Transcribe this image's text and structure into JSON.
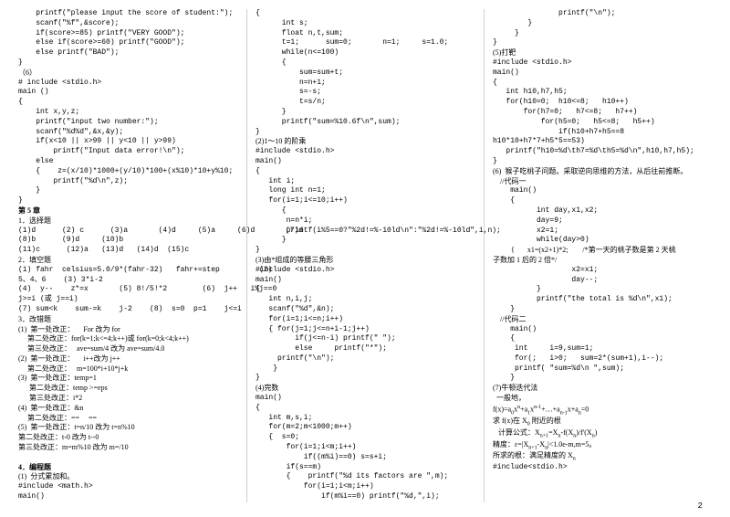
{
  "col1": [
    "    printf(\"please input the score of student:\");",
    "    scanf(\"%f\",&score);",
    "    if(score>=85) printf(\"VERY GOOD\");",
    "    else if(score>=60) printf(\"GOOD\");",
    "    else printf(\"BAD\");",
    "}",
    "（6）",
    "# include <stdio.h>",
    "main ()",
    "{",
    "    int x,y,z;",
    "    printf(\"input two number:\");",
    "    scanf(\"%d%d\",&x,&y);",
    "    if(x<10 || x>99 || y<10 || y>99)",
    "        printf(\"Input data error!\\n\");",
    "    else",
    "    {    z=(x/10)*1000+(y/10)*100+(x%10)*10+y%10;",
    "        printf(\"%d\\n\",z);",
    "    }",
    "}"
  ],
  "ch5_header": "第 5 章",
  "ch5_sel_title": "1．选择题",
  "ch5_sel_line1": "(1)d      (2) c      (3)a       (4)d     (5)a     (6)d       (7)d",
  "ch5_sel_line2": "(8)b      (9)d     (10)b",
  "ch5_sel_line3": "(11)c      (12)a   (13)d   (14)d  (15)c",
  "ch5_fill_title": "2．填空题",
  "ch5_fill1": "(1) fahr  celsius=5.0/9*(fahr-32)   fahr+=step         (2)",
  "ch5_fill2": "5、4、6    (3) 3*i-2",
  "ch5_fill3": "(4)  y--    z*=x       (5) 8!/5!*2        (6)  j++   i%j==0",
  "ch5_fill4": "j>=i (或 j==i)",
  "ch5_fill5": "(7) sum<k    sum-=k    j-2    (8)  s=0  p=1    j<=i",
  "ch5_mod_title": "3．改错题",
  "mod1a": "(1)  第一处改正：     For 改为 for",
  "mod1b": "     第二处改正：for(k=1;k<=4;k++)或 for(k=0;k<4;k++)",
  "mod1c": "     第三处改正：   ave=sum/4 改为 ave=sum/4.0",
  "mod2a": "(2)  第一处改正：     i++改为 j++",
  "mod2b": "     第二处改正：   m=100*i+10*j+k",
  "mod3a": "(3)  第一处改正：temp=1",
  "mod3b": "      第二处改正：temp >=eps",
  "mod3c": "      第三处改正：i*2",
  "mod4a": "(4)  第一处改正：&n",
  "mod4b": "     第二处改正：==     ==",
  "mod5a": "(5)  第一处改正：t=n/10 改为 t=n%10",
  "mod5b": "第二处改正：t-0 改为 t--0",
  "mod5c": "第三处改正：m=m%10 改为 m=/10",
  "ch5_prog_title": "4．编程题",
  "prog1": "(1)  分式累加和。",
  "prog1a": "#include <math.h>",
  "col2": [
    "main()",
    "{",
    "      int s;",
    "      float n,t,sum;",
    "      t=1;      sum=0;       n=1;     s=1.0;",
    "      while(n<=100)",
    "      {",
    "          sum=sum+t;",
    "          n=n+1;",
    "          s=-s;",
    "          t=s/n;",
    "      }",
    "      printf(\"sum=%10.6f\\n\",sum);",
    "}",
    "(2)1～10 的阶乘",
    "#include <stdio.h>",
    "main()",
    "{",
    "   int i;",
    "   long int n=1;",
    "   for(i=1;i<=10;i++)",
    "      {",
    "       n=n*i;",
    "       printf(i%5==0?\"%2d!=%-10ld\\n\":\"%2d!=%-10ld\",i,n);",
    "      }",
    "}",
    "(3)由*组成的等腰三角形",
    "#include <stdio.h>",
    "main()",
    "{",
    "   int n,i,j;",
    "   scanf(\"%d\",&n);",
    "   for(i=1;i<=n;i++)",
    "   { for(j=1;j<=n+i-1;j++)",
    "         if(j<=n-i) printf(\" \");",
    "         else     printf(\"*\");",
    "     printf(\"\\n\");",
    "    }",
    "}",
    "(4)完数",
    "main()",
    "{",
    "   int m,s,i;",
    "   for(m=2;m<1000;m++)",
    "   {  s=0;",
    "       for(i=1;i<m;i++)",
    "           if((m%i)==0) s=s+i;",
    "       if(s==m)",
    "       {    printf(\"%d its factors are \",m);"
  ],
  "col3": [
    "           for(i=1;i<m;i++)",
    "               if(m%i==0) printf(\"%d,\",i);",
    "               printf(\"\\n\");",
    "        }",
    "     }",
    "}",
    "(5)打靶",
    "#include <stdio.h>",
    "main()",
    "{",
    "   int h10,h7,h5;",
    "   for(h10=0;  h10<=8;   h10++)",
    "       for(h7=0;   h7<=8;   h7++)",
    "           for(h5=0;   h5<=8;   h5++)",
    "               if(h10+h7+h5==8                                  &&",
    "h10*10+h7*7+h5*5==53)",
    "",
    "   printf(\"h10=%d\\th7=%d\\th5=%d\\n\",h10,h7,h5);",
    "}"
  ],
  "monkey_title": "(6)  猴子吃桃子问题。采取逆向思维的方法，从后往前推断。",
  "monkey_code_label": "    //代码一",
  "monkey_code1": [
    "    main()",
    "    {",
    "          int day,x1,x2;",
    "          day=9;",
    "          x2=1;",
    "          while(day>0)",
    "          {       x1=(x2+1)*2;        /*第一天的桃子数是第 2 天桃",
    "子数加 1 后的 2 倍*/",
    "                  x2=x1;",
    "                  day--;",
    "          }",
    "          printf(\"the total is %d\\n\",x1);",
    "    }"
  ],
  "monkey_code2_label": "    //代码二",
  "monkey_code2": [
    "    main()",
    "    {",
    "     int     i=9,sum=1;",
    "     for(;   i>0;   sum=2*(sum+1),i--);",
    "     printf( \"sum=%d\\n \",sum);",
    "    }"
  ],
  "newton_title": "(7)牛顿迭代法",
  "newton_text": [
    "  一般地，",
    "计算公式、",
    "精度：",
    "所求的根：满足精度的 X"
  ],
  "newton_last": "#include<stdio.h>",
  "pagenum": "2"
}
